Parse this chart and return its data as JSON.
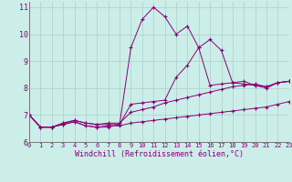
{
  "xlabel": "Windchill (Refroidissement éolien,°C)",
  "background_color": "#cceee8",
  "grid_color": "#aacccc",
  "line_color": "#880077",
  "xlim": [
    0,
    23
  ],
  "ylim": [
    6,
    11.2
  ],
  "yticks": [
    6,
    7,
    8,
    9,
    10,
    11
  ],
  "xticks": [
    0,
    1,
    2,
    3,
    4,
    5,
    6,
    7,
    8,
    9,
    10,
    11,
    12,
    13,
    14,
    15,
    16,
    17,
    18,
    19,
    20,
    21,
    22,
    23
  ],
  "series": [
    [
      7.0,
      6.55,
      6.55,
      6.65,
      6.75,
      6.6,
      6.55,
      6.55,
      6.65,
      9.5,
      10.55,
      11.0,
      10.65,
      10.0,
      10.3,
      9.5,
      8.1,
      8.15,
      8.2,
      8.25,
      8.1,
      8.0,
      8.2,
      8.25
    ],
    [
      7.0,
      6.55,
      6.55,
      6.7,
      6.8,
      6.7,
      6.65,
      6.65,
      6.65,
      7.4,
      7.45,
      7.5,
      7.55,
      8.4,
      8.85,
      9.5,
      9.8,
      9.4,
      8.2,
      8.15,
      8.1,
      8.05,
      8.2,
      8.25
    ],
    [
      7.0,
      6.55,
      6.55,
      6.7,
      6.8,
      6.7,
      6.65,
      6.7,
      6.7,
      7.1,
      7.2,
      7.3,
      7.45,
      7.55,
      7.65,
      7.75,
      7.85,
      7.95,
      8.05,
      8.1,
      8.15,
      8.05,
      8.2,
      8.25
    ],
    [
      7.0,
      6.55,
      6.55,
      6.65,
      6.75,
      6.6,
      6.55,
      6.6,
      6.6,
      6.7,
      6.75,
      6.8,
      6.85,
      6.9,
      6.95,
      7.0,
      7.05,
      7.1,
      7.15,
      7.2,
      7.25,
      7.3,
      7.4,
      7.5
    ]
  ],
  "ylabel_fontsize": 6,
  "xlabel_fontsize": 6,
  "tick_fontsize_x": 5,
  "tick_fontsize_y": 6
}
